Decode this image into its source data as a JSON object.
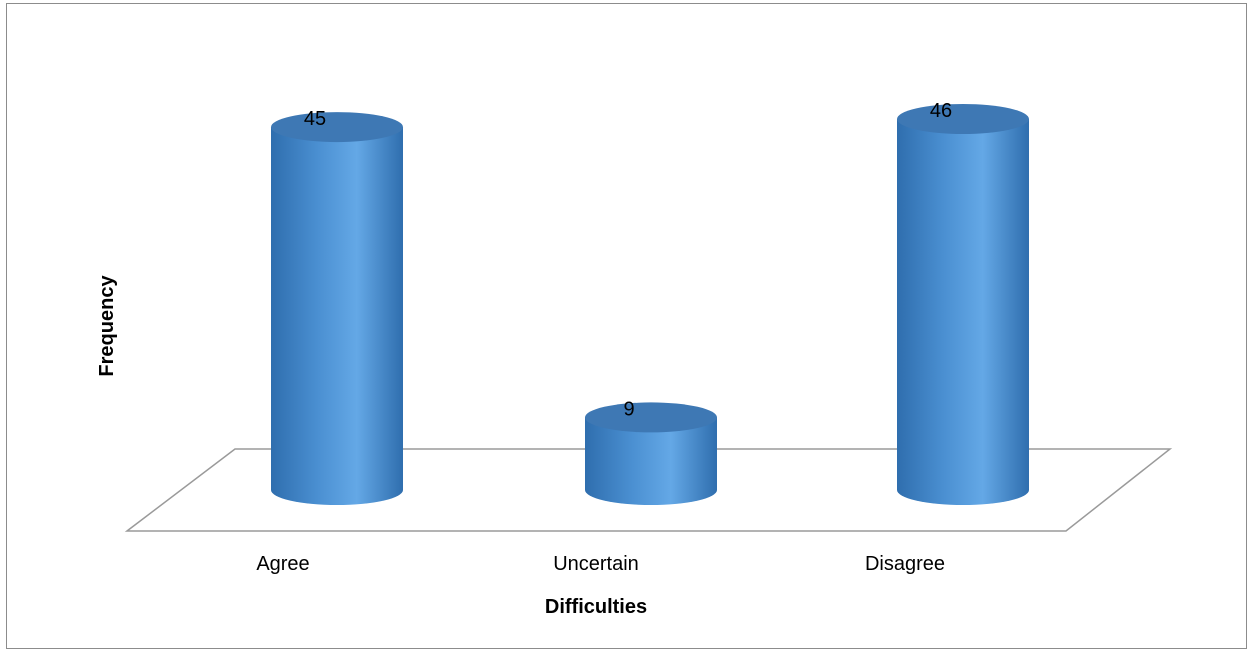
{
  "chart_data": {
    "type": "bar",
    "style": "3d-cylinder",
    "categories": [
      "Agree",
      "Uncertain",
      "Disagree"
    ],
    "values": [
      45,
      9,
      46
    ],
    "xlabel": "Difficulties",
    "ylabel": "Frequency",
    "ylim": [
      0,
      46
    ],
    "grid": false,
    "legend": "none",
    "colors": {
      "bar_light": "#64a8e6",
      "bar_mid": "#4a8fd1",
      "bar_dark": "#2f6eae",
      "top": "#3e78b4",
      "floor_line": "#9a9a9a"
    }
  }
}
